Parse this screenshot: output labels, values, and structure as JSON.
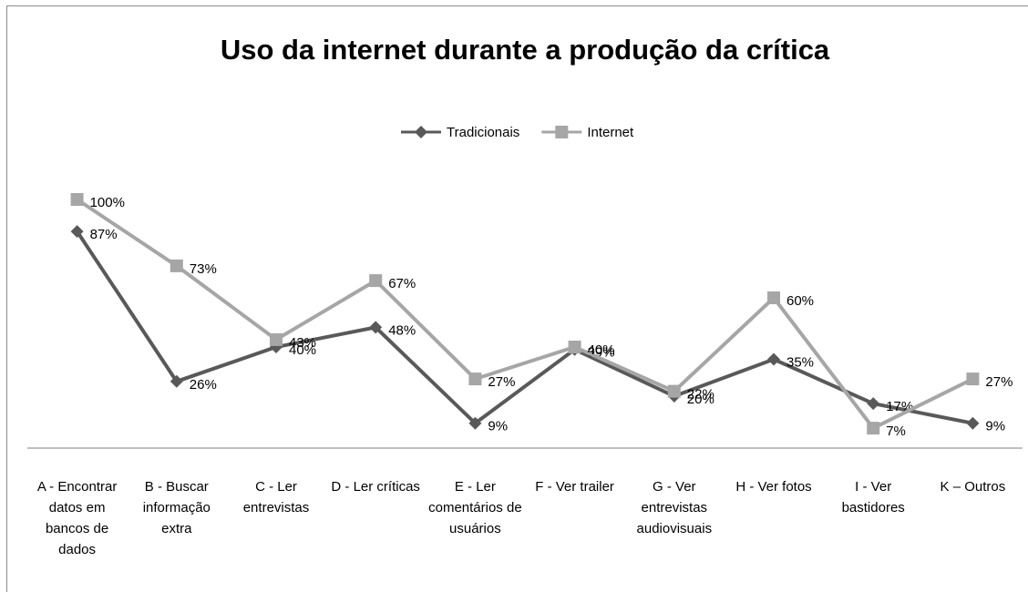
{
  "chart_data": {
    "type": "line",
    "title": "Uso da internet durante a produção da crítica",
    "categories": [
      "A - Encontrar datos em bancos de dados",
      "B - Buscar informação extra",
      "C - Ler entrevistas",
      "D - Ler críticas",
      "E - Ler comentários de usuários",
      "F - Ver trailer",
      "G - Ver entrevistas audiovisuais",
      "H - Ver fotos",
      "I - Ver bastidores",
      "K – Outros"
    ],
    "series": [
      {
        "name": "Tradicionais",
        "color": "#595959",
        "marker": "diamond",
        "values": [
          87,
          26,
          40,
          48,
          9,
          39,
          20,
          35,
          17,
          9
        ],
        "value_labels": [
          "87%",
          "26%",
          "40%",
          "48%",
          "9%",
          "39%",
          "20%",
          "35%",
          "17%",
          "9%"
        ]
      },
      {
        "name": "Internet",
        "color": "#a6a6a6",
        "marker": "square",
        "values": [
          100,
          73,
          43,
          67,
          27,
          40,
          22,
          60,
          7,
          27
        ],
        "value_labels": [
          "100%",
          "73%",
          "43%",
          "67%",
          "27%",
          "40%",
          "22%",
          "60%",
          "7%",
          "27%"
        ]
      }
    ],
    "ylim": [
      0,
      100
    ],
    "legend": "top"
  }
}
